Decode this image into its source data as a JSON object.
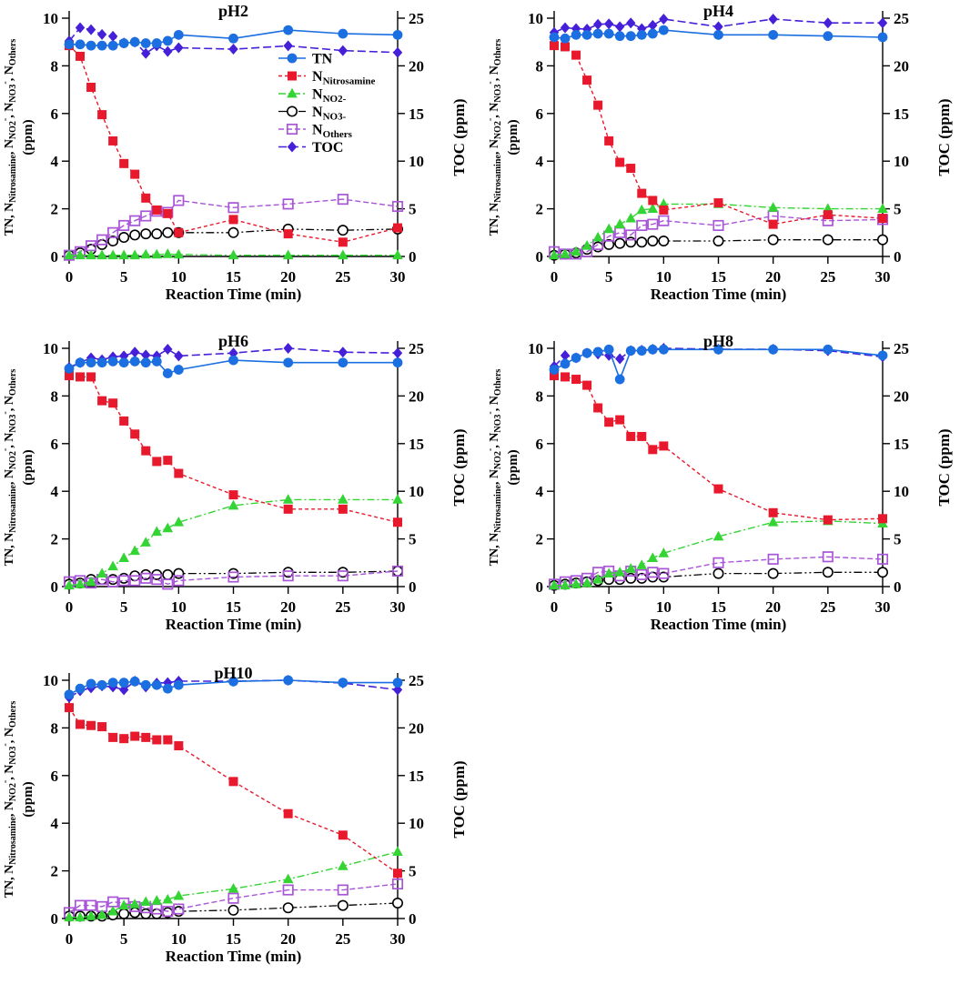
{
  "figure": {
    "background": "#ffffff",
    "x_axis_label": "Reaction Time (min)",
    "right_axis_label": "TOC (ppm)",
    "left_axis_label_plain": "TN, N_Nitrosamine, N_NO2-, N_NO3-, N_Others (ppm)",
    "left_axis_label_segments": [
      {
        "t": "TN, N"
      },
      {
        "t": "Nitrosamine",
        "s": "sub"
      },
      {
        "t": ", N"
      },
      {
        "t": "NO2",
        "s": "sub"
      },
      {
        "t": "-",
        "s": "sup"
      },
      {
        "t": ", N"
      },
      {
        "t": "NO3",
        "s": "sub"
      },
      {
        "t": "-",
        "s": "sup"
      },
      {
        "t": ", N"
      },
      {
        "t": "Others",
        "s": "sub"
      }
    ],
    "left_axis_label_line2": "(ppm)",
    "series_styles": {
      "TN": {
        "color": "#1b6fe0",
        "marker": "circle",
        "dash": "",
        "width": 1.6
      },
      "N_Nitrosamine": {
        "color": "#e8192c",
        "marker": "square",
        "dash": "4 3",
        "width": 1.4
      },
      "N_NO2-": {
        "color": "#33d433",
        "marker": "triangle",
        "dash": "8 3 2 3",
        "width": 1.4
      },
      "N_NO3-": {
        "color": "#000000",
        "marker": "circle-open",
        "dash": "9 3 2 3 2 3",
        "width": 1.3
      },
      "N_Others": {
        "color": "#a855d8",
        "marker": "square-open",
        "dash": "6 3",
        "width": 1.4
      },
      "TOC": {
        "color": "#4620d8",
        "marker": "diamond",
        "dash": "9 4",
        "width": 1.6
      }
    },
    "draw_order": [
      "N_NO3-",
      "N_Others",
      "N_NO2-",
      "N_Nitrosamine",
      "TOC",
      "TN"
    ],
    "legend": {
      "entries": [
        {
          "key": "TN",
          "segments": [
            {
              "t": "TN"
            }
          ]
        },
        {
          "key": "N_Nitrosamine",
          "segments": [
            {
              "t": "N"
            },
            {
              "t": "Nitrosamine",
              "s": "sub"
            }
          ]
        },
        {
          "key": "N_NO2-",
          "segments": [
            {
              "t": "N"
            },
            {
              "t": "NO2-",
              "s": "sub"
            }
          ]
        },
        {
          "key": "N_NO3-",
          "segments": [
            {
              "t": "N"
            },
            {
              "t": "NO3-",
              "s": "sub"
            }
          ]
        },
        {
          "key": "N_Others",
          "segments": [
            {
              "t": "N"
            },
            {
              "t": "Others",
              "s": "sub"
            }
          ]
        },
        {
          "key": "TOC",
          "segments": [
            {
              "t": "TOC"
            }
          ]
        }
      ]
    }
  },
  "chart_data": [
    {
      "type": "line",
      "title": "pH2",
      "xlabel": "Reaction Time (min)",
      "ylabel_left": "TN, N_Nitrosamine, N_NO2-, N_NO3-, N_Others (ppm)",
      "ylabel_right": "TOC (ppm)",
      "xlim": [
        0,
        30
      ],
      "ylim_left": [
        0,
        10
      ],
      "ylim_right": [
        0,
        25
      ],
      "x_ticks": [
        0,
        5,
        10,
        15,
        20,
        25,
        30
      ],
      "y_ticks_left": [
        0,
        2,
        4,
        6,
        8,
        10
      ],
      "y_ticks_right": [
        0,
        5,
        10,
        15,
        20,
        25
      ],
      "x": [
        0,
        1,
        2,
        3,
        4,
        5,
        6,
        7,
        8,
        9,
        10,
        15,
        20,
        25,
        30
      ],
      "legend": true,
      "legend_position": {
        "x": 306,
        "y": 64
      },
      "series": [
        {
          "name": "TN",
          "axis": "left",
          "values": [
            8.9,
            8.9,
            8.85,
            8.85,
            8.85,
            8.95,
            9.0,
            8.95,
            8.95,
            9.05,
            9.3,
            9.15,
            9.5,
            9.35,
            9.3
          ]
        },
        {
          "name": "N_Nitrosamine",
          "axis": "left",
          "values": [
            8.85,
            8.4,
            7.1,
            5.95,
            4.85,
            3.9,
            3.45,
            2.45,
            1.95,
            1.8,
            1.0,
            1.55,
            0.95,
            0.6,
            1.2
          ]
        },
        {
          "name": "N_NO2-",
          "axis": "left",
          "values": [
            0.05,
            0.05,
            0.05,
            0.05,
            0.05,
            0.05,
            0.05,
            0.08,
            0.08,
            0.1,
            0.08,
            0.05,
            0.05,
            0.05,
            0.05
          ]
        },
        {
          "name": "N_NO3-",
          "axis": "left",
          "values": [
            0.05,
            0.15,
            0.3,
            0.5,
            0.65,
            0.8,
            0.9,
            0.95,
            0.95,
            1.0,
            1.0,
            1.0,
            1.15,
            1.1,
            1.15
          ]
        },
        {
          "name": "N_Others",
          "axis": "left",
          "values": [
            0.05,
            0.2,
            0.45,
            0.7,
            1.0,
            1.3,
            1.5,
            1.7,
            1.9,
            1.85,
            2.35,
            2.05,
            2.2,
            2.4,
            2.1
          ]
        },
        {
          "name": "TOC",
          "axis": "right",
          "values": [
            22.6,
            24.0,
            23.8,
            23.3,
            23.1,
            22.4,
            22.5,
            21.3,
            22.1,
            21.5,
            21.9,
            21.75,
            22.1,
            21.6,
            21.4
          ]
        }
      ]
    },
    {
      "type": "line",
      "title": "pH4",
      "xlabel": "Reaction Time (min)",
      "ylabel_left": "TN, N_Nitrosamine, N_NO2-, N_NO3-, N_Others (ppm)",
      "ylabel_right": "TOC (ppm)",
      "xlim": [
        0,
        30
      ],
      "ylim_left": [
        0,
        10
      ],
      "ylim_right": [
        0,
        25
      ],
      "x_ticks": [
        0,
        5,
        10,
        15,
        20,
        25,
        30
      ],
      "y_ticks_left": [
        0,
        2,
        4,
        6,
        8,
        10
      ],
      "y_ticks_right": [
        0,
        5,
        10,
        15,
        20,
        25
      ],
      "x": [
        0,
        1,
        2,
        3,
        4,
        5,
        6,
        7,
        8,
        9,
        10,
        15,
        20,
        25,
        30
      ],
      "legend": false,
      "series": [
        {
          "name": "TN",
          "axis": "left",
          "values": [
            9.2,
            9.15,
            9.3,
            9.3,
            9.35,
            9.35,
            9.25,
            9.25,
            9.3,
            9.35,
            9.5,
            9.3,
            9.3,
            9.25,
            9.2
          ]
        },
        {
          "name": "N_Nitrosamine",
          "axis": "left",
          "values": [
            8.85,
            8.8,
            8.45,
            7.4,
            6.35,
            4.85,
            3.95,
            3.7,
            2.65,
            2.35,
            1.95,
            2.25,
            1.35,
            1.75,
            1.6
          ]
        },
        {
          "name": "N_NO2-",
          "axis": "left",
          "values": [
            0.05,
            0.1,
            0.2,
            0.45,
            0.8,
            1.15,
            1.35,
            1.6,
            1.95,
            2.0,
            2.2,
            2.2,
            2.05,
            2.0,
            2.0
          ]
        },
        {
          "name": "N_NO3-",
          "axis": "left",
          "values": [
            0.05,
            0.1,
            0.15,
            0.3,
            0.4,
            0.5,
            0.55,
            0.6,
            0.6,
            0.65,
            0.65,
            0.65,
            0.7,
            0.7,
            0.7
          ]
        },
        {
          "name": "N_Others",
          "axis": "left",
          "values": [
            0.2,
            0.1,
            0.1,
            0.2,
            0.5,
            0.85,
            1.0,
            0.9,
            1.3,
            1.35,
            1.5,
            1.3,
            1.7,
            1.5,
            1.55
          ]
        },
        {
          "name": "TOC",
          "axis": "right",
          "values": [
            23.5,
            24.0,
            23.9,
            23.85,
            24.35,
            24.4,
            24.1,
            24.5,
            23.9,
            24.25,
            24.9,
            24.1,
            24.9,
            24.5,
            24.5
          ]
        }
      ]
    },
    {
      "type": "line",
      "title": "pH6",
      "xlabel": "Reaction Time (min)",
      "ylabel_left": "TN, N_Nitrosamine, N_NO2-, N_NO3-, N_Others (ppm)",
      "ylabel_right": "TOC (ppm)",
      "xlim": [
        0,
        30
      ],
      "ylim_left": [
        0,
        10
      ],
      "ylim_right": [
        0,
        25
      ],
      "x_ticks": [
        0,
        5,
        10,
        15,
        20,
        25,
        30
      ],
      "y_ticks_left": [
        0,
        2,
        4,
        6,
        8,
        10
      ],
      "y_ticks_right": [
        0,
        5,
        10,
        15,
        20,
        25
      ],
      "x": [
        0,
        1,
        2,
        3,
        4,
        5,
        6,
        7,
        8,
        9,
        10,
        15,
        20,
        25,
        30
      ],
      "legend": false,
      "series": [
        {
          "name": "TN",
          "axis": "left",
          "values": [
            9.15,
            9.4,
            9.4,
            9.4,
            9.45,
            9.4,
            9.45,
            9.4,
            9.45,
            8.95,
            9.1,
            9.5,
            9.4,
            9.4,
            9.4
          ]
        },
        {
          "name": "N_Nitrosamine",
          "axis": "left",
          "values": [
            8.85,
            8.8,
            8.8,
            7.8,
            7.7,
            6.95,
            6.4,
            5.7,
            5.25,
            5.3,
            4.75,
            3.85,
            3.25,
            3.25,
            2.7
          ]
        },
        {
          "name": "N_NO2-",
          "axis": "left",
          "values": [
            0.05,
            0.1,
            0.2,
            0.55,
            0.85,
            1.2,
            1.5,
            1.85,
            2.3,
            2.45,
            2.7,
            3.4,
            3.65,
            3.65,
            3.65
          ]
        },
        {
          "name": "N_NO3-",
          "axis": "left",
          "values": [
            0.1,
            0.15,
            0.3,
            0.3,
            0.3,
            0.35,
            0.45,
            0.5,
            0.5,
            0.5,
            0.55,
            0.55,
            0.6,
            0.6,
            0.65
          ]
        },
        {
          "name": "N_Others",
          "axis": "left",
          "values": [
            0.2,
            0.25,
            0.15,
            0.3,
            0.2,
            0.25,
            0.25,
            0.35,
            0.3,
            0.1,
            0.25,
            0.4,
            0.45,
            0.45,
            0.65
          ]
        },
        {
          "name": "TOC",
          "axis": "right",
          "values": [
            23.0,
            23.5,
            24.0,
            23.8,
            24.1,
            24.2,
            24.6,
            24.3,
            24.2,
            24.9,
            24.2,
            24.5,
            25.0,
            24.6,
            24.5
          ]
        }
      ]
    },
    {
      "type": "line",
      "title": "pH8",
      "xlabel": "Reaction Time (min)",
      "ylabel_left": "TN, N_Nitrosamine, N_NO2-, N_NO3-, N_Others (ppm)",
      "ylabel_right": "TOC (ppm)",
      "xlim": [
        0,
        30
      ],
      "ylim_left": [
        0,
        10
      ],
      "ylim_right": [
        0,
        25
      ],
      "x_ticks": [
        0,
        5,
        10,
        15,
        20,
        25,
        30
      ],
      "y_ticks_left": [
        0,
        2,
        4,
        6,
        8,
        10
      ],
      "y_ticks_right": [
        0,
        5,
        10,
        15,
        20,
        25
      ],
      "x": [
        0,
        1,
        2,
        3,
        4,
        5,
        6,
        7,
        8,
        9,
        10,
        15,
        20,
        25,
        30
      ],
      "legend": false,
      "series": [
        {
          "name": "TN",
          "axis": "left",
          "values": [
            9.1,
            9.35,
            9.6,
            9.8,
            9.85,
            9.95,
            8.7,
            9.9,
            9.9,
            9.95,
            9.95,
            9.95,
            9.95,
            9.95,
            9.7
          ]
        },
        {
          "name": "N_Nitrosamine",
          "axis": "left",
          "values": [
            8.85,
            8.8,
            8.7,
            8.45,
            7.5,
            6.9,
            7.0,
            6.3,
            6.3,
            5.75,
            5.9,
            4.1,
            3.1,
            2.8,
            2.85
          ]
        },
        {
          "name": "N_NO2-",
          "axis": "left",
          "values": [
            0.05,
            0.05,
            0.1,
            0.15,
            0.3,
            0.55,
            0.6,
            0.75,
            0.9,
            1.2,
            1.4,
            2.1,
            2.7,
            2.75,
            2.65
          ]
        },
        {
          "name": "N_NO3-",
          "axis": "left",
          "values": [
            0.05,
            0.1,
            0.15,
            0.2,
            0.25,
            0.3,
            0.3,
            0.35,
            0.35,
            0.4,
            0.4,
            0.55,
            0.55,
            0.6,
            0.6
          ]
        },
        {
          "name": "N_Others",
          "axis": "left",
          "values": [
            0.1,
            0.2,
            0.25,
            0.35,
            0.6,
            0.65,
            0.45,
            0.65,
            0.5,
            0.6,
            0.55,
            1.0,
            1.15,
            1.25,
            1.15
          ]
        },
        {
          "name": "TOC",
          "axis": "right",
          "values": [
            23.1,
            24.25,
            24.0,
            24.5,
            24.4,
            24.25,
            23.9,
            24.75,
            24.8,
            24.9,
            25.0,
            24.9,
            24.9,
            24.75,
            24.1
          ]
        }
      ]
    },
    {
      "type": "line",
      "title": "pH10",
      "xlabel": "Reaction Time (min)",
      "ylabel_left": "TN, N_Nitrosamine, N_NO2-, N_NO3-, N_Others (ppm)",
      "ylabel_right": "TOC (ppm)",
      "xlim": [
        0,
        30
      ],
      "ylim_left": [
        0,
        10
      ],
      "ylim_right": [
        0,
        25
      ],
      "x_ticks": [
        0,
        5,
        10,
        15,
        20,
        25,
        30
      ],
      "y_ticks_left": [
        0,
        2,
        4,
        6,
        8,
        10
      ],
      "y_ticks_right": [
        0,
        5,
        10,
        15,
        20,
        25
      ],
      "x": [
        0,
        1,
        2,
        3,
        4,
        5,
        6,
        7,
        8,
        9,
        10,
        15,
        20,
        25,
        30
      ],
      "legend": false,
      "series": [
        {
          "name": "TN",
          "axis": "left",
          "values": [
            9.4,
            9.65,
            9.85,
            9.8,
            9.9,
            9.9,
            9.95,
            9.8,
            9.8,
            9.65,
            9.8,
            9.95,
            10.0,
            9.9,
            9.9
          ]
        },
        {
          "name": "N_Nitrosamine",
          "axis": "left",
          "values": [
            8.85,
            8.15,
            8.1,
            8.05,
            7.6,
            7.55,
            7.65,
            7.6,
            7.5,
            7.5,
            7.25,
            5.75,
            4.4,
            3.5,
            1.9
          ]
        },
        {
          "name": "N_NO2-",
          "axis": "left",
          "values": [
            0.05,
            0.05,
            0.1,
            0.15,
            0.3,
            0.55,
            0.6,
            0.7,
            0.75,
            0.8,
            0.95,
            1.25,
            1.65,
            2.2,
            2.8
          ]
        },
        {
          "name": "N_NO3-",
          "axis": "left",
          "values": [
            0.1,
            0.1,
            0.1,
            0.1,
            0.15,
            0.2,
            0.25,
            0.2,
            0.2,
            0.25,
            0.3,
            0.35,
            0.45,
            0.55,
            0.65
          ]
        },
        {
          "name": "N_Others",
          "axis": "left",
          "values": [
            0.25,
            0.55,
            0.55,
            0.5,
            0.7,
            0.65,
            0.5,
            0.45,
            0.4,
            0.3,
            0.4,
            0.85,
            1.2,
            1.2,
            1.45
          ]
        },
        {
          "name": "TOC",
          "axis": "right",
          "values": [
            23.2,
            23.9,
            24.2,
            24.4,
            24.3,
            24.0,
            24.9,
            24.3,
            24.7,
            24.75,
            24.9,
            24.9,
            25.0,
            24.7,
            24.0
          ]
        }
      ]
    }
  ]
}
